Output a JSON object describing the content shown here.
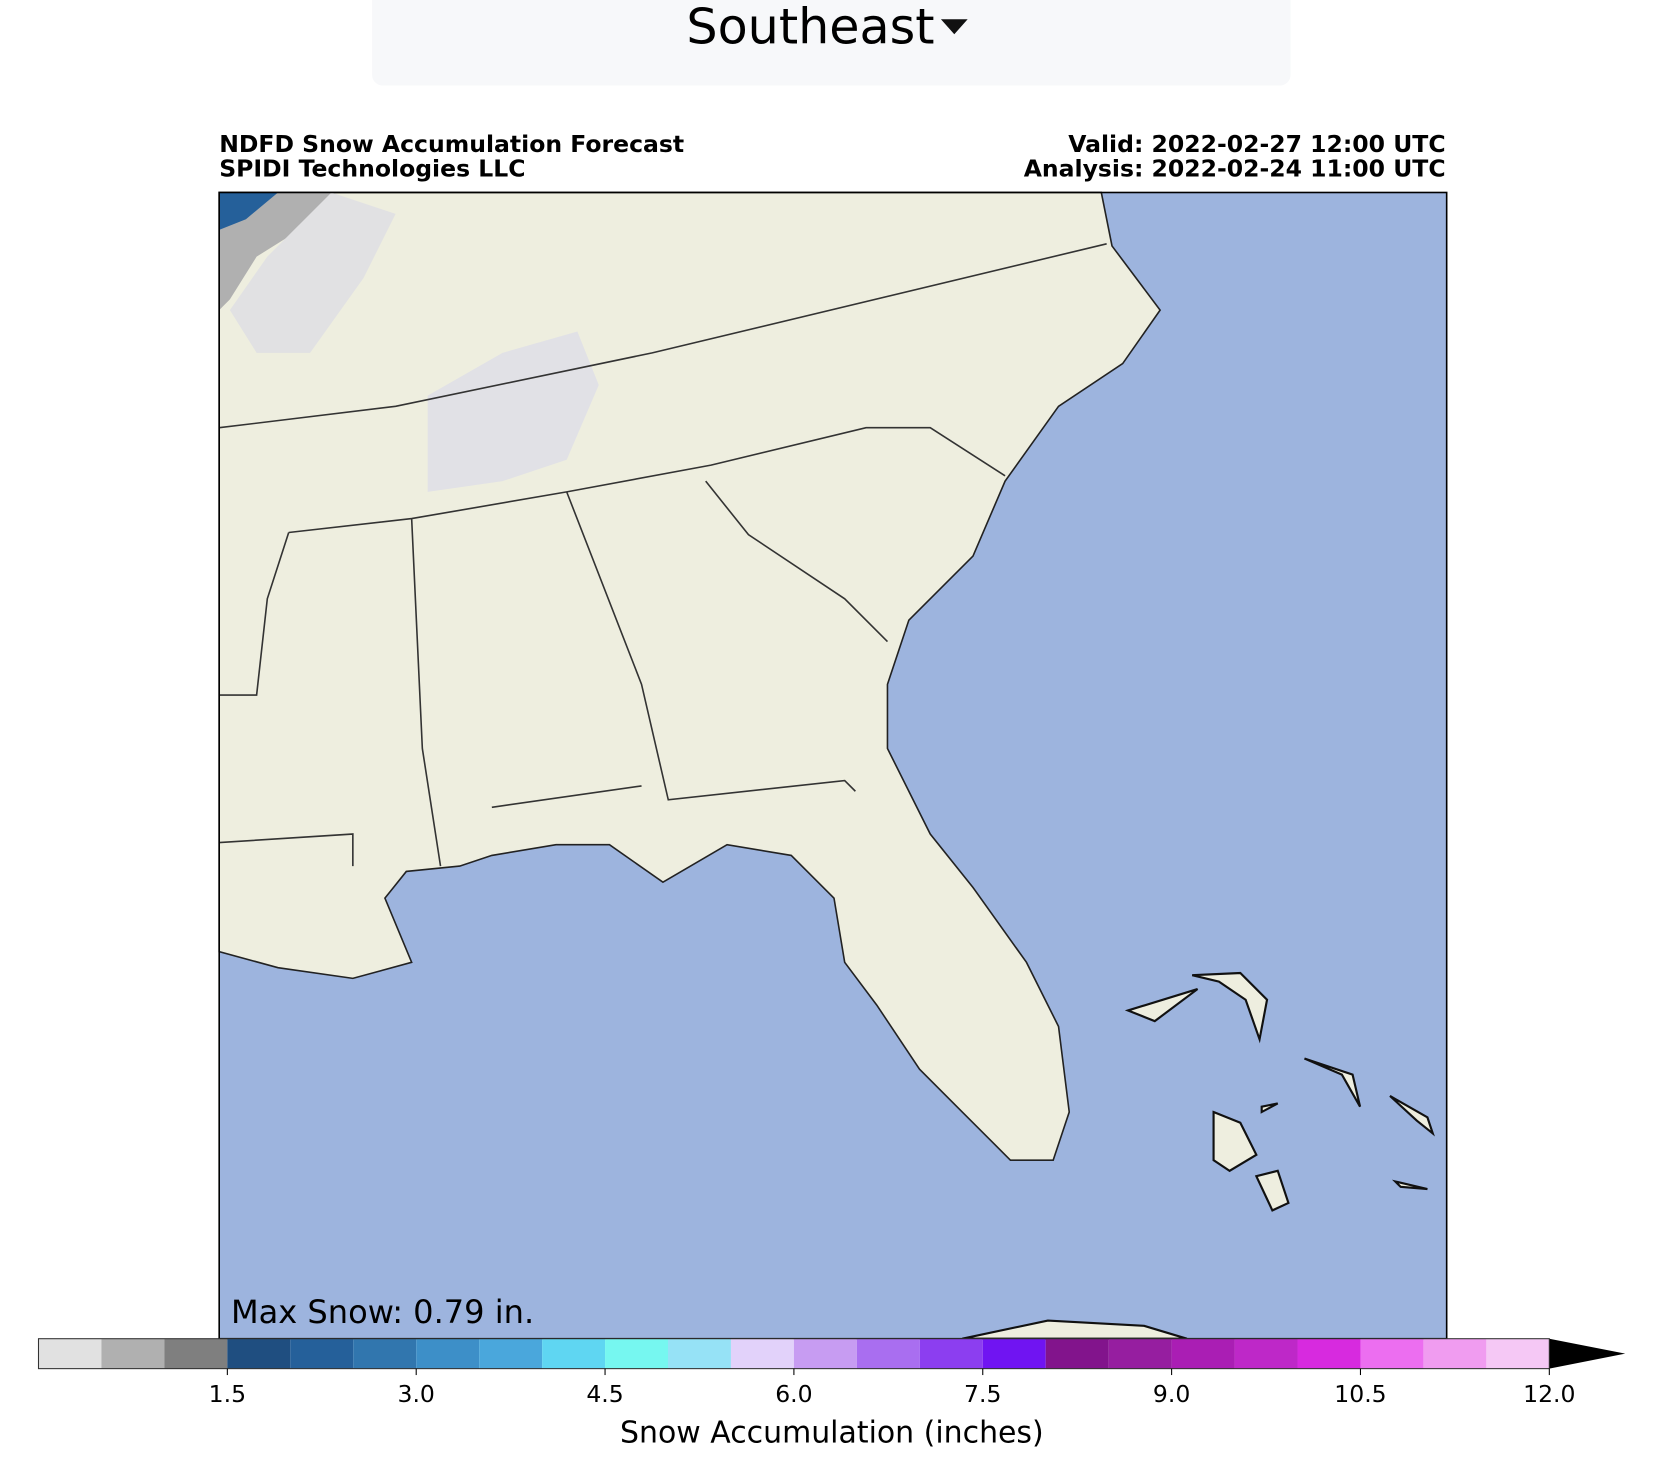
{
  "dropdown": {
    "label": "Southeast"
  },
  "map": {
    "title": "NDFD Snow Accumulation Forecast",
    "source": "SPIDI Technologies LLC",
    "valid": "Valid: 2022-02-27 12:00 UTC",
    "analysis": "Analysis: 2022-02-24 11:00 UTC",
    "max_snow": "Max Snow: 0.79 in."
  },
  "colorbar": {
    "label": "Snow Accumulation (inches)",
    "lim": [
      0,
      12
    ],
    "bounds": [
      0,
      0.5,
      1,
      1.5,
      2,
      2.5,
      3,
      3.5,
      4,
      4.5,
      5,
      5.5,
      6,
      6.5,
      7,
      7.5,
      8,
      8.5,
      9,
      9.5,
      10,
      10.5,
      11,
      11.5,
      12
    ],
    "colors": [
      "#e1e1e1",
      "#b0b0b0",
      "#7f7f7f",
      "#1f4e80",
      "#25609a",
      "#3176ae",
      "#3d8fc8",
      "#4aa7dc",
      "#5fd6f2",
      "#76f7f0",
      "#96e2f6",
      "#e2d2fa",
      "#c79cf2",
      "#a96ef0",
      "#8c3ef0",
      "#7014f2",
      "#82148c",
      "#961ea0",
      "#aa1eb4",
      "#be28c8",
      "#d72adf",
      "#ec6ef0",
      "#f09cf0",
      "#f5c8f5"
    ],
    "ticks": [
      1.5,
      {
        "value": 3,
        "label": "3.0"
      },
      4.5,
      {
        "value": 6,
        "label": "6.0"
      },
      7.5,
      {
        "value": 9,
        "label": "9.0"
      },
      10.5,
      {
        "value": 12,
        "label": "12.0"
      }
    ]
  }
}
